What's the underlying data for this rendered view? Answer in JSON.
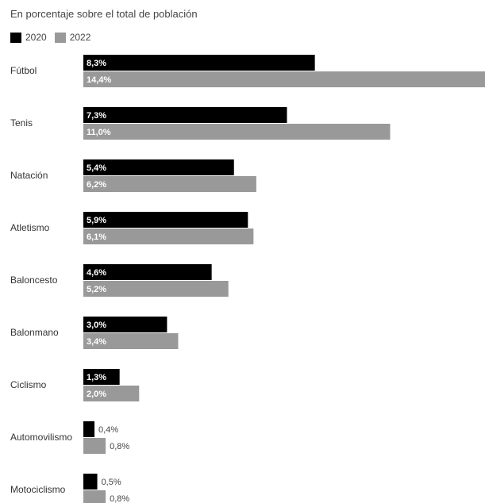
{
  "header": {
    "subtitle": "En porcentaje sobre el total de población"
  },
  "legend": [
    {
      "label": "2020",
      "color": "#000000"
    },
    {
      "label": "2022",
      "color": "#999999"
    }
  ],
  "chart_data": {
    "type": "bar",
    "orientation": "horizontal",
    "subtitle": "En porcentaje sobre el total de población",
    "categories": [
      "Fútbol",
      "Tenis",
      "Natación",
      "Atletismo",
      "Baloncesto",
      "Balonmano",
      "Ciclismo",
      "Automovilismo",
      "Motociclismo"
    ],
    "series": [
      {
        "name": "2020",
        "color": "#000000",
        "values": [
          8.3,
          7.3,
          5.4,
          5.9,
          4.6,
          3.0,
          1.3,
          0.4,
          0.5
        ],
        "labels": [
          "8,3%",
          "7,3%",
          "5,4%",
          "5,9%",
          "4,6%",
          "3,0%",
          "1,3%",
          "0,4%",
          "0,5%"
        ]
      },
      {
        "name": "2022",
        "color": "#999999",
        "values": [
          14.4,
          11.0,
          6.2,
          6.1,
          5.2,
          3.4,
          2.0,
          0.8,
          0.8
        ],
        "labels": [
          "14,4%",
          "11,0%",
          "6,2%",
          "6,1%",
          "5,2%",
          "3,4%",
          "2,0%",
          "0,8%",
          "0,8%"
        ]
      }
    ],
    "xlim": [
      0,
      14.4
    ],
    "legend_position": "top-left",
    "grid": false
  }
}
